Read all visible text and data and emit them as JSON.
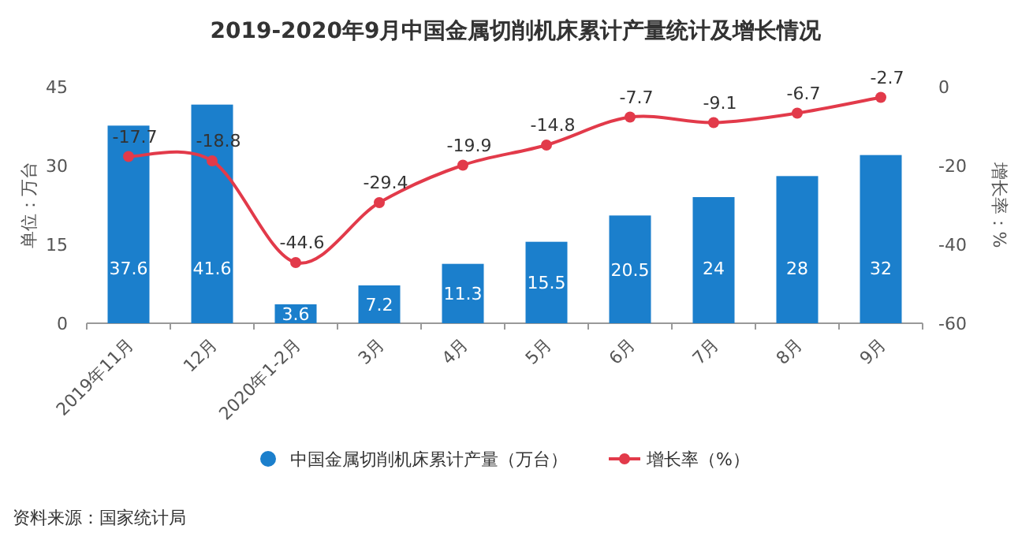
{
  "chart_data": {
    "type": "bar",
    "title": "2019-2020年9月中国金属切削机床累计产量统计及增长情况",
    "ylabel": "单位：万台",
    "y2label": "增长率：%",
    "categories": [
      "2019年11月",
      "12月",
      "2020年1-2月",
      "3月",
      "4月",
      "5月",
      "6月",
      "7月",
      "8月",
      "9月"
    ],
    "series": [
      {
        "name": "中国金属切削机床累计产量（万台）",
        "color": "#1b7fcc",
        "values": [
          37.6,
          41.6,
          3.6,
          7.2,
          11.3,
          15.5,
          20.5,
          24,
          28,
          32
        ]
      },
      {
        "name": "增长率（%）",
        "type": "line",
        "axis": "y2",
        "color": "#e23a4a",
        "values": [
          -17.7,
          -18.8,
          -44.6,
          -29.4,
          -19.9,
          -14.8,
          -7.7,
          -9.1,
          -6.7,
          -2.7
        ]
      }
    ],
    "ylim": [
      0,
      45
    ],
    "yticks": [
      0,
      15,
      30,
      45
    ],
    "y2lim": [
      -60,
      0
    ],
    "y2ticks": [
      -60,
      -40,
      -20,
      0
    ],
    "legend": "bottom",
    "marker": "circle",
    "data_labels": true,
    "annotations": [
      "资料来源：国家统计局"
    ]
  }
}
